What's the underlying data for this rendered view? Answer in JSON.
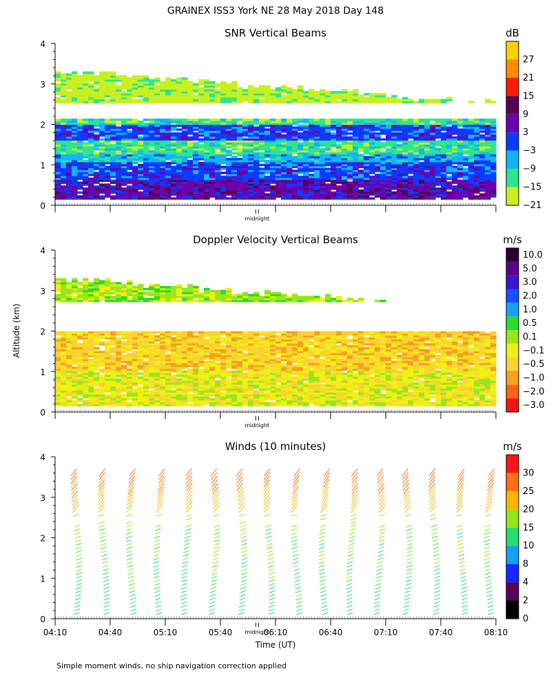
{
  "page_title": "GRAINEX ISS3 York NE  28 May 2018 Day 148",
  "footer_note": "Simple moment winds, no ship navigation correction applied",
  "y_axis_label": "Altitude (km)",
  "x_axis_label": "Time (UT)",
  "midnight_label": "midnight",
  "time_ticks": [
    "04:10",
    "04:40",
    "05:10",
    "05:40",
    "06:10",
    "06:40",
    "07:10",
    "07:40",
    "08:10"
  ],
  "altitude_ticks": [
    "0",
    "1",
    "2",
    "3",
    "4"
  ],
  "chart_data": [
    {
      "type": "heatmap",
      "title": "SNR Vertical Beams",
      "ylabel": "Altitude (km)",
      "xlabel": "",
      "ylim": [
        0,
        4
      ],
      "x_start": "04:10",
      "x_end": "08:10",
      "colorbar_unit": "dB",
      "colorbar_labels": [
        "27",
        "21",
        "15",
        "9",
        "3",
        "−3",
        "−9",
        "−15",
        "−21"
      ],
      "colorbar_colors": [
        "#ffd000",
        "#ff8c00",
        "#ff1a00",
        "#5a0050",
        "#6a00b0",
        "#0a3cff",
        "#12b4ff",
        "#2ce68c",
        "#c8f020"
      ],
      "bands": [
        {
          "from_km": 0.15,
          "to_km": 0.6,
          "approx_db": 3
        },
        {
          "from_km": 0.6,
          "to_km": 1.05,
          "approx_db": -3
        },
        {
          "from_km": 1.05,
          "to_km": 1.25,
          "approx_db": -9
        },
        {
          "from_km": 1.25,
          "to_km": 1.6,
          "approx_db": -15
        },
        {
          "from_km": 1.6,
          "to_km": 1.95,
          "approx_db": -3
        },
        {
          "from_km": 1.95,
          "to_km": 2.1,
          "approx_db": -15
        },
        {
          "from_km": 2.5,
          "to_km": 3.3,
          "approx_db": -21
        }
      ]
    },
    {
      "type": "heatmap",
      "title": "Doppler Velocity Vertical Beams",
      "ylabel": "Altitude (km)",
      "xlabel": "",
      "ylim": [
        0,
        4
      ],
      "x_start": "04:10",
      "x_end": "08:10",
      "colorbar_unit": "m/s",
      "colorbar_labels": [
        "10.0",
        "5.0",
        "3.0",
        "2.0",
        "1.0",
        "0.5",
        "0.1",
        "−0.1",
        "−0.5",
        "−1.0",
        "−2.0",
        "−3.0"
      ],
      "colorbar_colors": [
        "#2a0030",
        "#5a008a",
        "#3c14d2",
        "#1450ff",
        "#14a0ff",
        "#28dc28",
        "#9ae61e",
        "#f0f014",
        "#fad232",
        "#f5a01e",
        "#ff6414",
        "#f01414"
      ],
      "bands": [
        {
          "from_km": 0.15,
          "to_km": 1.0,
          "approx_ms": -0.1
        },
        {
          "from_km": 1.0,
          "to_km": 1.95,
          "approx_ms": -0.5
        },
        {
          "from_km": 2.7,
          "to_km": 3.3,
          "approx_ms": 0.1
        }
      ]
    },
    {
      "type": "scatter",
      "title": "Winds (10 minutes)",
      "ylabel": "Altitude (km)",
      "xlabel": "Time (UT)",
      "ylim": [
        0,
        4
      ],
      "x_start": "04:10",
      "x_end": "08:10",
      "colorbar_unit": "m/s",
      "colorbar_labels": [
        "30",
        "25",
        "20",
        "15",
        "10",
        "8",
        "4",
        "2",
        "0"
      ],
      "colorbar_colors": [
        "#ff1414",
        "#ff6e14",
        "#ffb400",
        "#96e614",
        "#28dc6e",
        "#14a0ff",
        "#1428ff",
        "#5a005a",
        "#000000"
      ],
      "barb_columns_minutes_after_0410": [
        10,
        25,
        40,
        55,
        70,
        85,
        100,
        115,
        130,
        145,
        160,
        175,
        190,
        205,
        220,
        235
      ],
      "speed_profile": [
        {
          "altitude_km": 0.5,
          "speed_ms": 13
        },
        {
          "altitude_km": 1.5,
          "speed_ms": 15
        },
        {
          "altitude_km": 2.2,
          "speed_ms": 16
        },
        {
          "altitude_km": 2.8,
          "speed_ms": 22
        },
        {
          "altitude_km": 3.5,
          "speed_ms": 28
        }
      ]
    }
  ]
}
